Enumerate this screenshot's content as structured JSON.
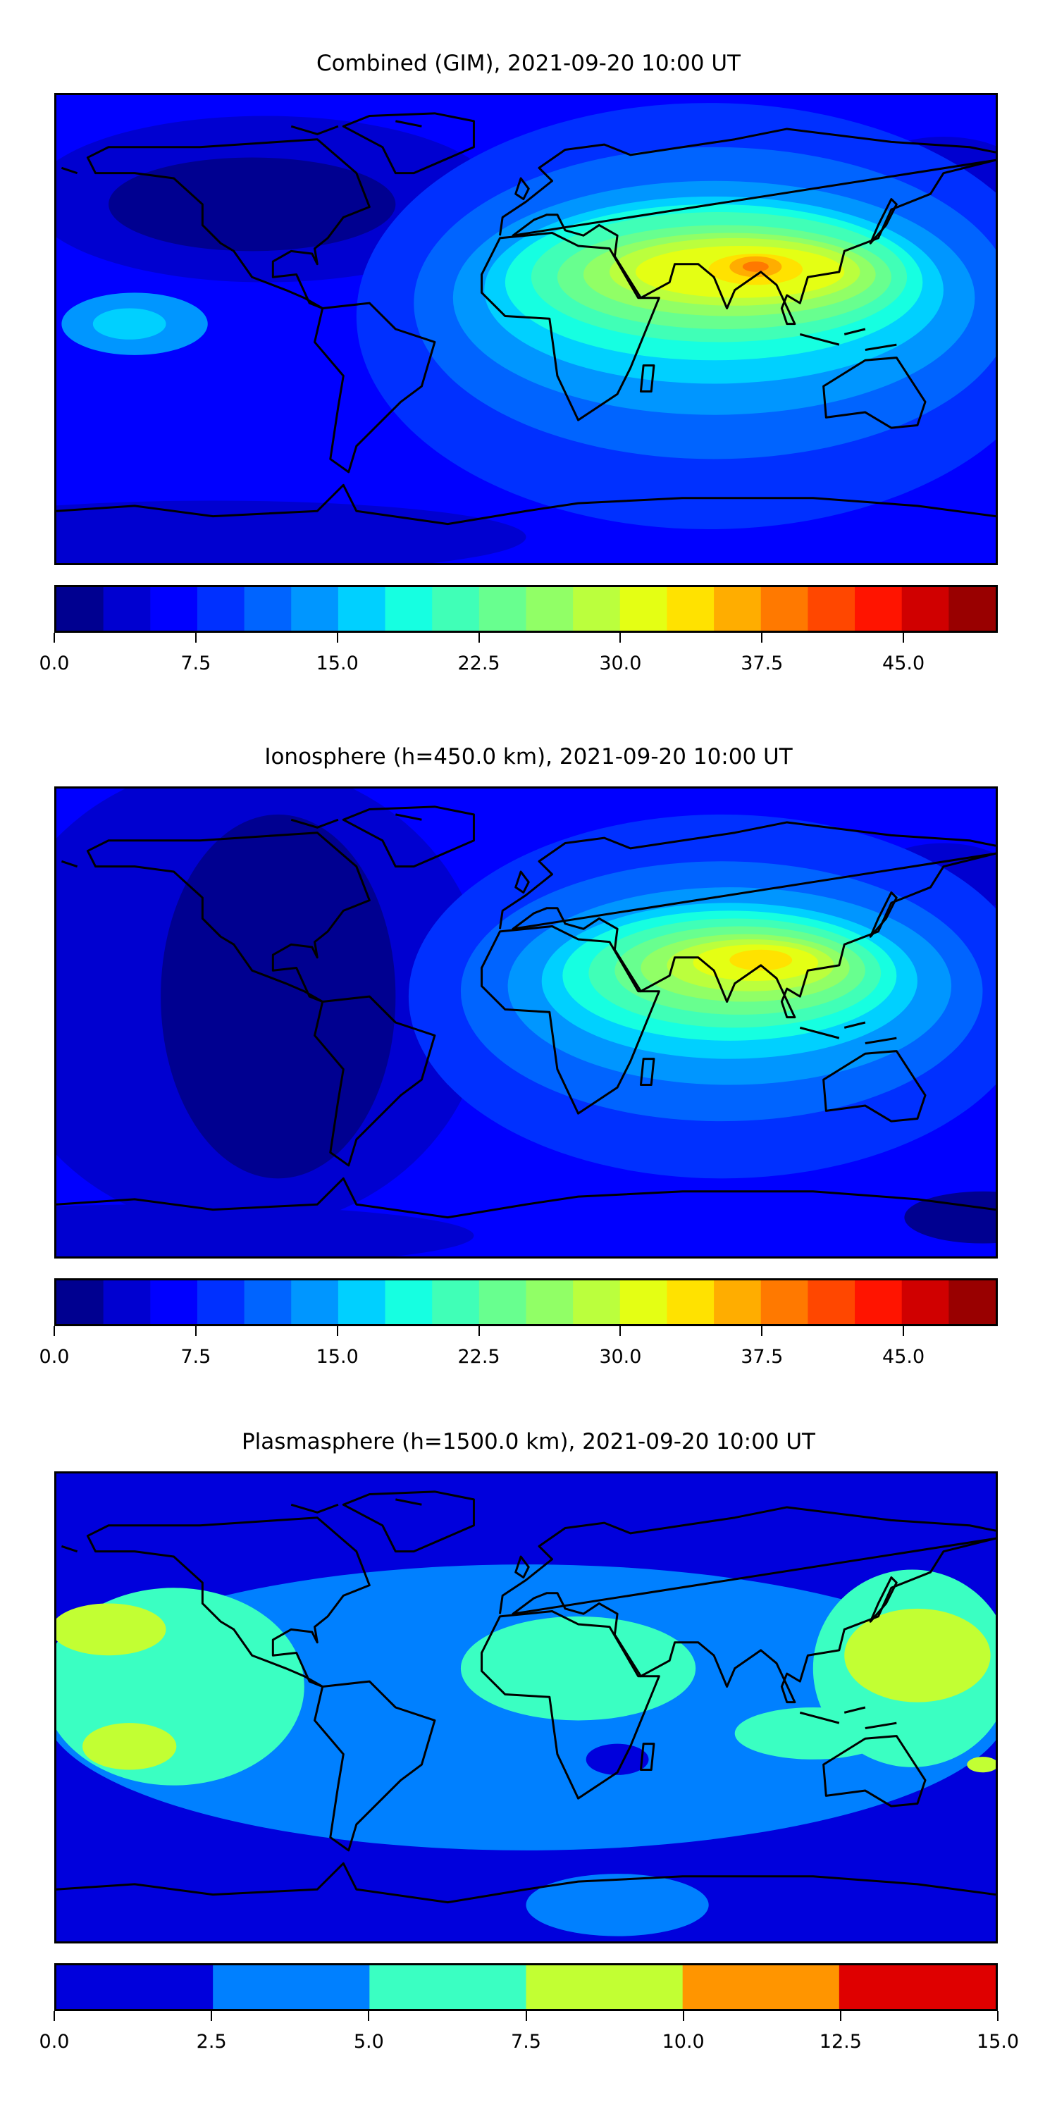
{
  "chart_data": [
    {
      "type": "heatmap",
      "title": "Combined (GIM), 2021-09-20 10:00 UT",
      "colorbar": {
        "range": [
          0,
          50
        ],
        "levels": [
          0,
          2.5,
          5,
          7.5,
          10,
          12.5,
          15,
          17.5,
          20,
          22.5,
          25,
          27.5,
          30,
          32.5,
          35,
          37.5,
          40,
          42.5,
          45,
          47.5,
          50
        ],
        "colors": [
          "#000090",
          "#0000d0",
          "#0000ff",
          "#0030ff",
          "#0064ff",
          "#0096ff",
          "#00d0ff",
          "#16ffe1",
          "#40ffb7",
          "#68ff8f",
          "#91ff66",
          "#bbff3d",
          "#e4ff14",
          "#ffe200",
          "#ffad00",
          "#ff7900",
          "#ff4700",
          "#ff1400",
          "#d00000",
          "#990000"
        ],
        "ticks": [
          0,
          7.5,
          15,
          22.5,
          30,
          37.5,
          45
        ],
        "tick_labels": [
          "0.0",
          "7.5",
          "15.0",
          "22.5",
          "30.0",
          "37.5",
          "45.0"
        ]
      }
    },
    {
      "type": "heatmap",
      "title": "Ionosphere  (h=450.0 km), 2021-09-20 10:00 UT",
      "colorbar": {
        "range": [
          0,
          50
        ],
        "levels": [
          0,
          2.5,
          5,
          7.5,
          10,
          12.5,
          15,
          17.5,
          20,
          22.5,
          25,
          27.5,
          30,
          32.5,
          35,
          37.5,
          40,
          42.5,
          45,
          47.5,
          50
        ],
        "colors": [
          "#000090",
          "#0000d0",
          "#0000ff",
          "#0030ff",
          "#0064ff",
          "#0096ff",
          "#00d0ff",
          "#16ffe1",
          "#40ffb7",
          "#68ff8f",
          "#91ff66",
          "#bbff3d",
          "#e4ff14",
          "#ffe200",
          "#ffad00",
          "#ff7900",
          "#ff4700",
          "#ff1400",
          "#d00000",
          "#990000"
        ],
        "ticks": [
          0,
          7.5,
          15,
          22.5,
          30,
          37.5,
          45
        ],
        "tick_labels": [
          "0.0",
          "7.5",
          "15.0",
          "22.5",
          "30.0",
          "37.5",
          "45.0"
        ]
      }
    },
    {
      "type": "heatmap",
      "title": "Plasmasphere (h=1500.0 km), 2021-09-20 10:00 UT",
      "colorbar": {
        "range": [
          0,
          15
        ],
        "levels": [
          0,
          2.5,
          5,
          7.5,
          10,
          12.5,
          15
        ],
        "colors": [
          "#0000dc",
          "#0080ff",
          "#3affc2",
          "#c2ff33",
          "#ff9500",
          "#df0000"
        ],
        "ticks": [
          0,
          2.5,
          5,
          7.5,
          10,
          12.5,
          15
        ],
        "tick_labels": [
          "0.0",
          "2.5",
          "5.0",
          "7.5",
          "10.0",
          "12.5",
          "15.0"
        ]
      }
    }
  ]
}
